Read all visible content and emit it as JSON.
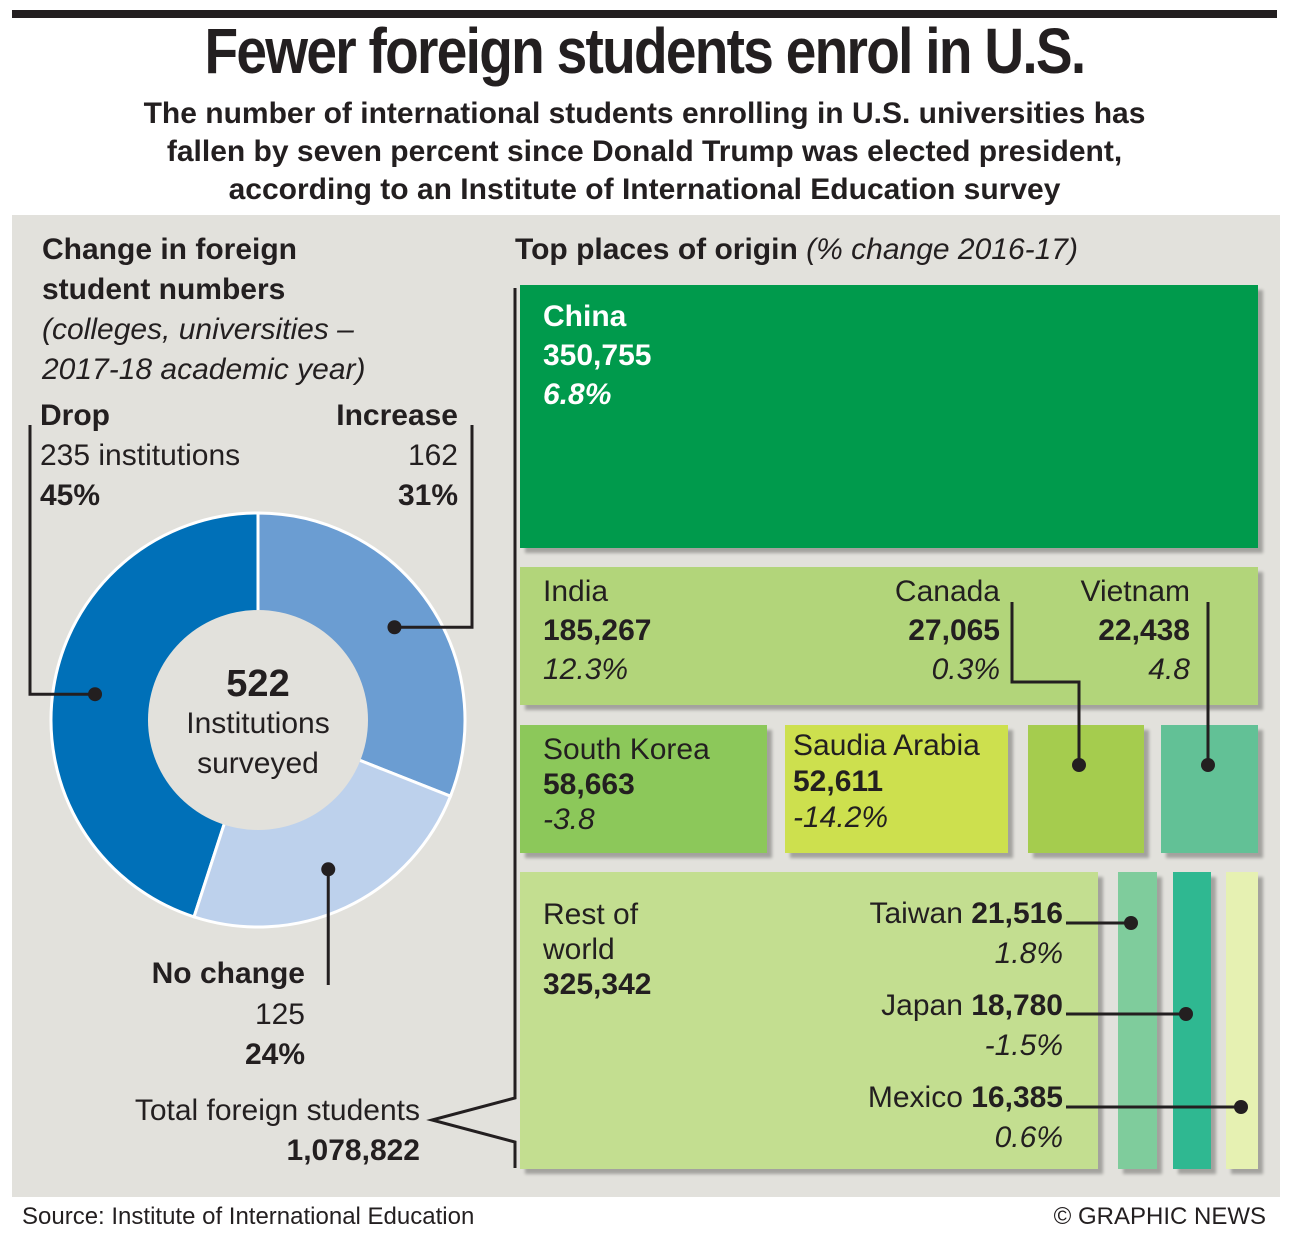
{
  "header": {
    "title": "Fewer foreign students enrol in U.S.",
    "subtitle_lines": [
      "The number of international students enrolling in U.S. universities has",
      "fallen by seven percent since Donald Trump was elected president,",
      "according to an Institute of International Education survey"
    ]
  },
  "left": {
    "heading_lines": [
      "Change in foreign",
      "student numbers"
    ],
    "note_lines": [
      "(colleges, universities –",
      "2017-18 academic year)"
    ],
    "center_value": "522",
    "center_lines": [
      "Institutions",
      "surveyed"
    ],
    "total_label": "Total foreign students",
    "total_value": "1,078,822"
  },
  "right": {
    "heading": "Top places of origin",
    "heading_note": "(% change 2016-17)"
  },
  "footer": {
    "source": "Source: Institute of International Education",
    "credit": "© GRAPHIC NEWS"
  },
  "colors": {
    "drop": "#0070b8",
    "increase": "#6b9dd2",
    "no_change": "#bdd1ec",
    "china": "#009a4c",
    "india_group": "#b2d57a",
    "south_korea": "#8cc85a",
    "saudi_arabia": "#cde04e",
    "canada": "#a5cc4e",
    "vietnam": "#62c196",
    "rest_of_world": "#c3de90",
    "taiwan": "#7fcc9c",
    "japan": "#2fb891",
    "mexico": "#e6f1b2",
    "panel": "#e2e1dc"
  },
  "chart_data": [
    {
      "type": "pie",
      "segments": [
        {
          "name": "Drop",
          "count": "235 institutions",
          "value": 45,
          "label": "45%"
        },
        {
          "name": "Increase",
          "count": "162",
          "value": 31,
          "label": "31%"
        },
        {
          "name": "No change",
          "count": "125",
          "value": 24,
          "label": "24%"
        }
      ]
    },
    {
      "type": "table",
      "items": [
        {
          "name": "China",
          "value": "350,755",
          "change": "6.8%"
        },
        {
          "name": "India",
          "value": "185,267",
          "change": "12.3%"
        },
        {
          "name": "Canada",
          "value": "27,065",
          "change": "0.3%"
        },
        {
          "name": "Vietnam",
          "value": "22,438",
          "change": "4.8"
        },
        {
          "name": "South Korea",
          "value": "58,663",
          "change": "-3.8"
        },
        {
          "name": "Saudia Arabia",
          "value": "52,611",
          "change": "-14.2%"
        },
        {
          "name": "Rest of world",
          "value": "325,342",
          "change": ""
        },
        {
          "name": "Taiwan",
          "value": "21,516",
          "change": "1.8%"
        },
        {
          "name": "Japan",
          "value": "18,780",
          "change": "-1.5%"
        },
        {
          "name": "Mexico",
          "value": "16,385",
          "change": "0.6%"
        }
      ]
    }
  ]
}
